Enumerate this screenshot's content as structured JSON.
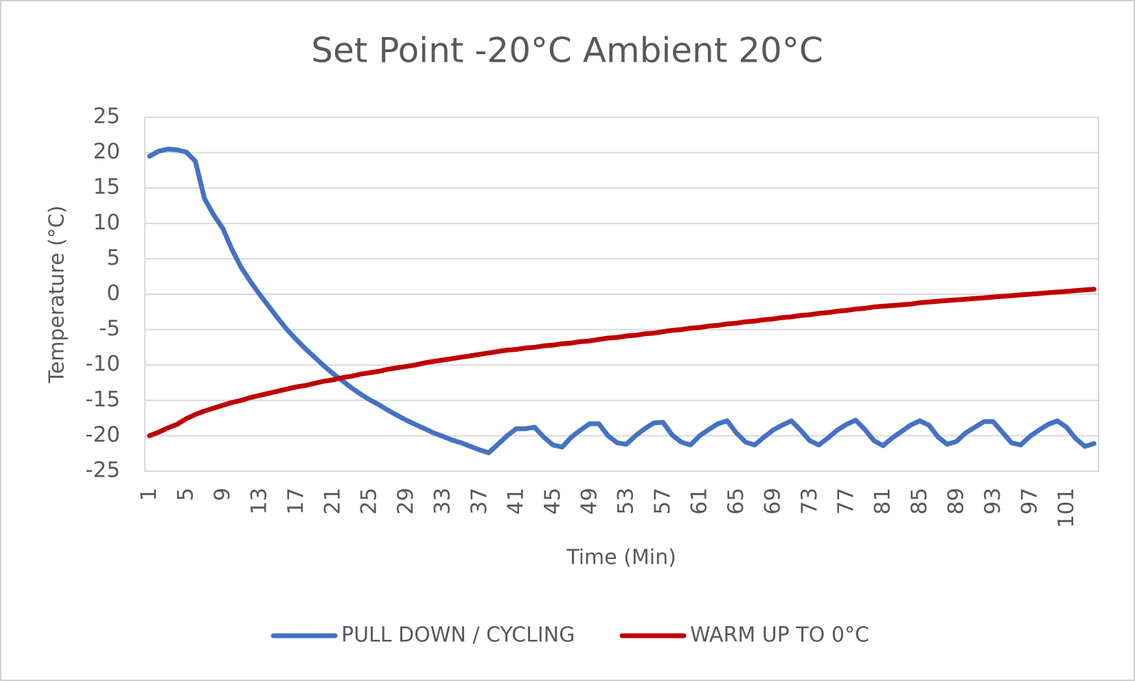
{
  "chart_data": {
    "type": "line",
    "title": "Set Point -20°C Ambient 20°C",
    "x_label": "Time (Min)",
    "y_label": "Temperature (°C)",
    "categories": [
      1,
      null,
      null,
      null,
      5,
      null,
      null,
      null,
      9,
      null,
      null,
      null,
      13,
      null,
      null,
      null,
      17,
      null,
      null,
      null,
      21,
      null,
      null,
      null,
      25,
      null,
      null,
      null,
      29,
      null,
      null,
      null,
      33,
      null,
      null,
      null,
      37,
      null,
      null,
      null,
      41,
      null,
      null,
      null,
      45,
      null,
      null,
      null,
      49,
      null,
      null,
      null,
      53,
      null,
      null,
      null,
      57,
      null,
      null,
      null,
      61,
      null,
      null,
      null,
      65,
      null,
      null,
      null,
      69,
      null,
      null,
      null,
      73,
      null,
      null,
      null,
      77,
      null,
      null,
      null,
      81,
      null,
      null,
      null,
      85,
      null,
      null,
      null,
      89,
      null,
      null,
      null,
      93,
      null,
      null,
      null,
      97,
      null,
      null,
      null,
      101,
      null,
      null,
      null
    ],
    "series": [
      {
        "name": "PULL DOWN / CYCLING",
        "color": "#4472c4",
        "values": [
          19.5,
          20.2,
          20.5,
          20.4,
          20.1,
          18.8,
          13.5,
          11.2,
          9.3,
          6.3,
          3.8,
          1.8,
          0,
          -1.7,
          -3.4,
          -5,
          -6.4,
          -7.7,
          -8.9,
          -10.1,
          -11.2,
          -12.2,
          -13.2,
          -14.1,
          -14.9,
          -15.6,
          -16.4,
          -17.1,
          -17.8,
          -18.4,
          -19,
          -19.6,
          -20.1,
          -20.6,
          -21,
          -21.5,
          -22,
          -22.4,
          -21.2,
          -20,
          -19,
          -19,
          -18.8,
          -20.2,
          -21.3,
          -21.6,
          -20.2,
          -19.2,
          -18.3,
          -18.3,
          -20,
          -21,
          -21.2,
          -20,
          -19,
          -18.2,
          -18.1,
          -19.9,
          -20.9,
          -21.3,
          -20,
          -19.1,
          -18.3,
          -17.9,
          -19.6,
          -20.9,
          -21.3,
          -20.2,
          -19.2,
          -18.5,
          -17.9,
          -19.2,
          -20.7,
          -21.3,
          -20.3,
          -19.2,
          -18.4,
          -17.8,
          -19.1,
          -20.7,
          -21.4,
          -20.3,
          -19.4,
          -18.5,
          -17.9,
          -18.5,
          -20.2,
          -21.2,
          -20.8,
          -19.6,
          -18.8,
          -18,
          -18,
          -19.5,
          -21,
          -21.3,
          -20.1,
          -19.2,
          -18.4,
          -17.9,
          -18.8,
          -20.4,
          -21.5,
          -21.1
        ]
      },
      {
        "name": "WARM UP TO 0°C",
        "color": "#c00000",
        "values": [
          -20,
          -19.5,
          -18.9,
          -18.4,
          -17.6,
          -17,
          -16.5,
          -16.1,
          -15.7,
          -15.3,
          -15,
          -14.6,
          -14.3,
          -14,
          -13.7,
          -13.4,
          -13.1,
          -12.9,
          -12.6,
          -12.3,
          -12.1,
          -11.8,
          -11.6,
          -11.3,
          -11.1,
          -10.9,
          -10.6,
          -10.4,
          -10.2,
          -10,
          -9.7,
          -9.5,
          -9.3,
          -9.1,
          -8.9,
          -8.7,
          -8.5,
          -8.3,
          -8.1,
          -7.9,
          -7.8,
          -7.6,
          -7.5,
          -7.3,
          -7.2,
          -7,
          -6.9,
          -6.7,
          -6.6,
          -6.4,
          -6.2,
          -6.1,
          -5.9,
          -5.8,
          -5.6,
          -5.5,
          -5.3,
          -5.1,
          -5,
          -4.8,
          -4.7,
          -4.5,
          -4.4,
          -4.2,
          -4.1,
          -3.9,
          -3.8,
          -3.6,
          -3.5,
          -3.3,
          -3.2,
          -3,
          -2.9,
          -2.7,
          -2.6,
          -2.4,
          -2.3,
          -2.1,
          -2,
          -1.8,
          -1.7,
          -1.6,
          -1.5,
          -1.4,
          -1.2,
          -1.1,
          -1,
          -0.9,
          -0.8,
          -0.7,
          -0.6,
          -0.5,
          -0.4,
          -0.3,
          -0.2,
          -0.1,
          0,
          0.1,
          0.2,
          0.3,
          0.4,
          0.5,
          0.6,
          0.7
        ]
      }
    ],
    "ylim": [
      -25,
      25
    ],
    "yticks": [
      -25,
      -20,
      -15,
      -10,
      -5,
      0,
      5,
      10,
      15,
      20,
      25
    ],
    "grid": true,
    "legend": "bottom"
  }
}
